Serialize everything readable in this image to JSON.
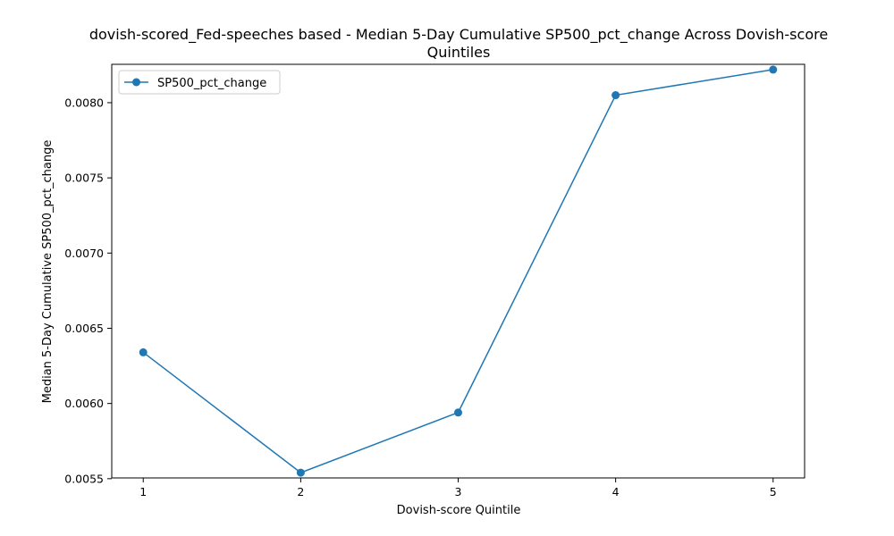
{
  "chart_data": {
    "type": "line",
    "title_line1": "dovish-scored_Fed-speeches based - Median 5-Day Cumulative SP500_pct_change Across Dovish-score",
    "title_line2": "Quintiles",
    "xlabel": "Dovish-score Quintile",
    "ylabel": "Median 5-Day Cumulative SP500_pct_change",
    "x": [
      1,
      2,
      3,
      4,
      5
    ],
    "x_ticks": [
      "1",
      "2",
      "3",
      "4",
      "5"
    ],
    "xlim": [
      0.8,
      5.2
    ],
    "y_ticks": [
      0.0055,
      0.006,
      0.0065,
      0.007,
      0.0075,
      0.008
    ],
    "y_tick_labels": [
      "0.0055",
      "0.0060",
      "0.0065",
      "0.0070",
      "0.0075",
      "0.0080"
    ],
    "ylim": [
      0.005505,
      0.008255
    ],
    "grid": false,
    "legend_position": "upper-left",
    "series": [
      {
        "name": "SP500_pct_change",
        "color": "#1f77b4",
        "marker": "circle",
        "values": [
          0.00634,
          0.00554,
          0.00594,
          0.00805,
          0.00822
        ]
      }
    ]
  }
}
